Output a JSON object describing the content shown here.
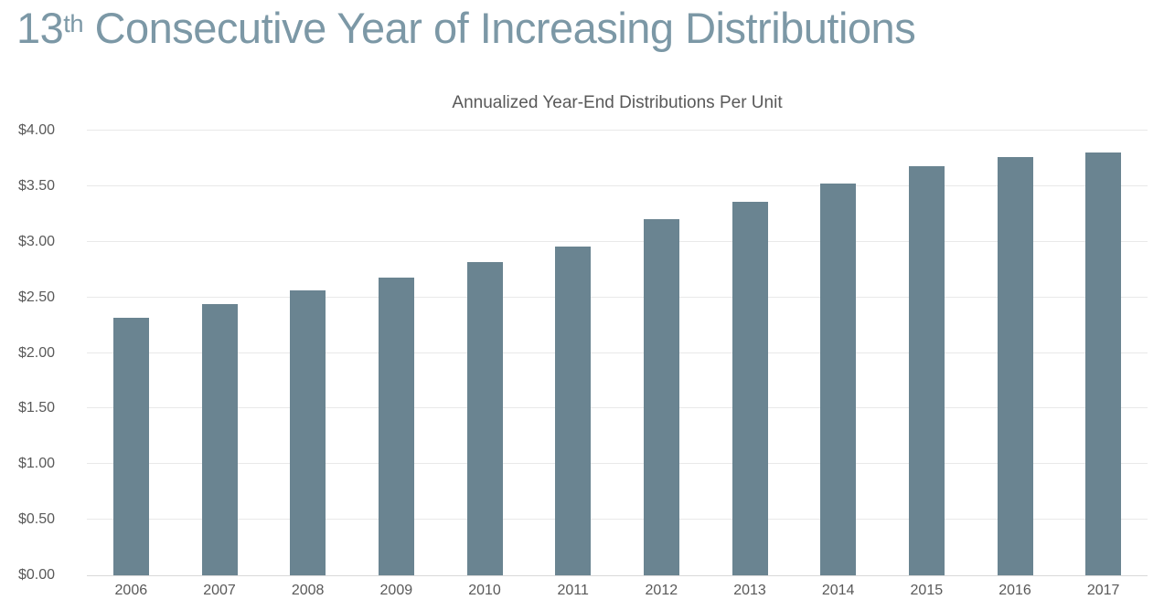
{
  "slide": {
    "title_number": "13",
    "title_ordinal": "th",
    "title_rest": " Consecutive Year of Increasing Distributions",
    "title_color": "#7c98a6"
  },
  "chart_data": {
    "type": "bar",
    "title": "Annualized Year-End Distributions Per Unit",
    "categories": [
      "2006",
      "2007",
      "2008",
      "2009",
      "2010",
      "2011",
      "2012",
      "2013",
      "2014",
      "2015",
      "2016",
      "2017"
    ],
    "values": [
      2.32,
      2.44,
      2.56,
      2.68,
      2.82,
      2.96,
      3.2,
      3.36,
      3.52,
      3.68,
      3.76,
      3.8
    ],
    "xlabel": "",
    "ylabel": "",
    "ylim": [
      0,
      4
    ],
    "yticks": [
      {
        "value": 0.0,
        "label": "$0.00"
      },
      {
        "value": 0.5,
        "label": "$0.50"
      },
      {
        "value": 1.0,
        "label": "$1.00"
      },
      {
        "value": 1.5,
        "label": "$1.50"
      },
      {
        "value": 2.0,
        "label": "$2.00"
      },
      {
        "value": 2.5,
        "label": "$2.50"
      },
      {
        "value": 3.0,
        "label": "$3.00"
      },
      {
        "value": 3.5,
        "label": "$3.50"
      },
      {
        "value": 4.0,
        "label": "$4.00"
      }
    ],
    "grid": true,
    "legend": false,
    "colors": {
      "bar": "#6a8491",
      "grid": "#e9e9e9",
      "axis_line": "#d9d9d9",
      "label": "#595959"
    }
  }
}
